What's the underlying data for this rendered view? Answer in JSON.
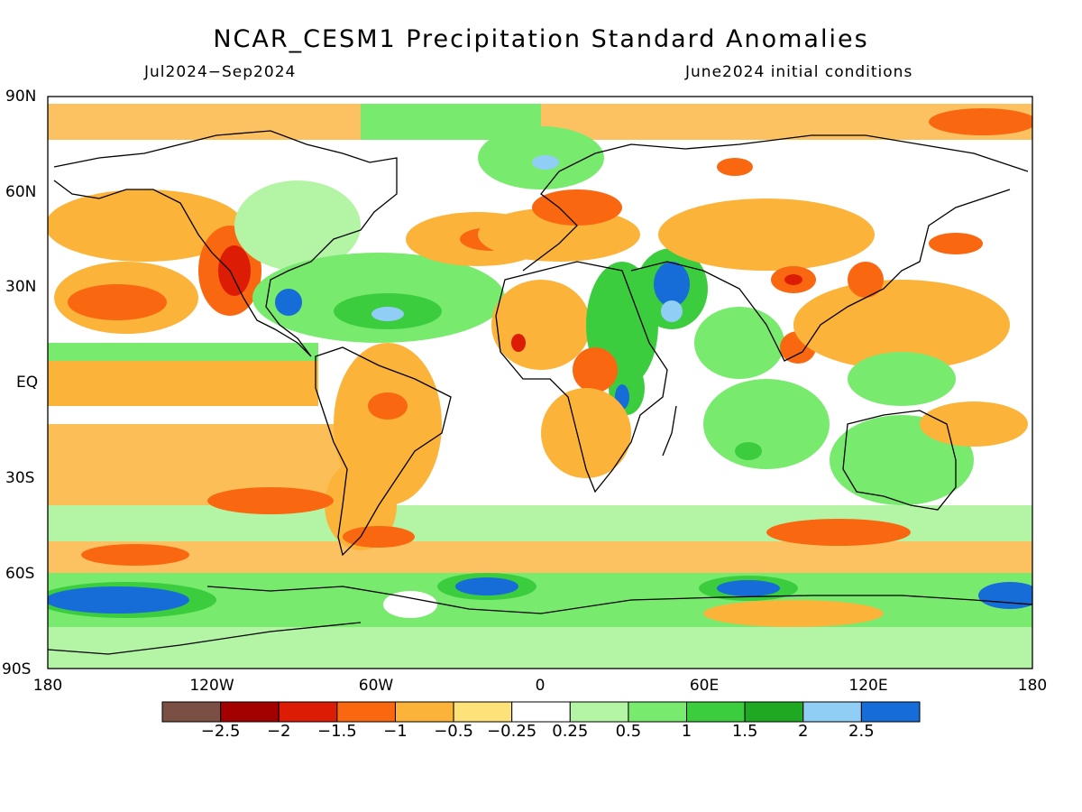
{
  "header": {
    "title": "NCAR_CESM1 Precipitation Standard Anomalies",
    "period": "Jul2024−Sep2024",
    "init": "June2024 initial conditions"
  },
  "axes": {
    "y_ticks": [
      "90N",
      "60N",
      "30N",
      "EQ",
      "30S",
      "60S",
      "90S"
    ],
    "x_ticks": [
      "180",
      "120W",
      "60W",
      "0",
      "60E",
      "120E",
      "180"
    ]
  },
  "colorbar": {
    "colors": [
      "#7a5045",
      "#a30000",
      "#dd1c06",
      "#fa6711",
      "#fbb33a",
      "#fde179",
      "#ffffff",
      "#b4f5a5",
      "#78ea6e",
      "#3ccd3f",
      "#1fa922",
      "#91cef5",
      "#166dd8"
    ],
    "labels": [
      "−2.5",
      "−2",
      "−1.5",
      "−1",
      "−0.5",
      "−0.25",
      "0.25",
      "0.5",
      "1",
      "1.5",
      "2",
      "2.5"
    ]
  }
}
